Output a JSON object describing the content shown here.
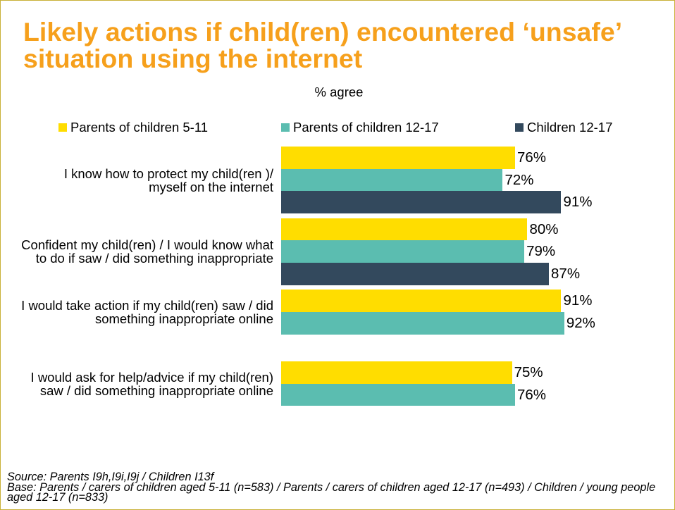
{
  "colors": {
    "title": "#F6A01C",
    "slide_border": "#C9B037"
  },
  "chart_data": {
    "type": "bar",
    "orientation": "horizontal",
    "title": "Likely actions if child(ren) encountered ‘unsafe’ situation using the internet",
    "subtitle": "% agree",
    "xlim": [
      0,
      100
    ],
    "grid": false,
    "legend": "top",
    "categories": [
      [
        "I know how to protect my child(ren )/",
        "myself on the internet"
      ],
      [
        "Confident my child(ren) / I would know what",
        "to do if saw / did something inappropriate"
      ],
      [
        "I would take action if my child(ren) saw / did",
        "something inappropriate online"
      ],
      [
        "I would ask for help/advice if my child(ren)",
        "saw / did something inappropriate online"
      ]
    ],
    "series": [
      {
        "name": "Parents of children 5-11",
        "color": "#FFDD00",
        "values": [
          76,
          80,
          91,
          75
        ],
        "labels": [
          "76%",
          "80%",
          "91%",
          "75%"
        ]
      },
      {
        "name": "Parents of children 12-17",
        "color": "#5BBDB0",
        "values": [
          72,
          79,
          92,
          76
        ],
        "labels": [
          "72%",
          "79%",
          "92%",
          "76%"
        ]
      },
      {
        "name": "Children 12-17",
        "color": "#33495D",
        "values": [
          91,
          87,
          null,
          null
        ],
        "labels": [
          "91%",
          "87%",
          null,
          null
        ]
      }
    ]
  },
  "footnote": {
    "source": "Source: Parents I9h,I9i,I9j / Children I13f",
    "base": "Base: Parents / carers of children aged 5-11 (n=583) / Parents / carers of children aged 12-17 (n=493) / Children / young people aged 12-17 (n=833)"
  }
}
